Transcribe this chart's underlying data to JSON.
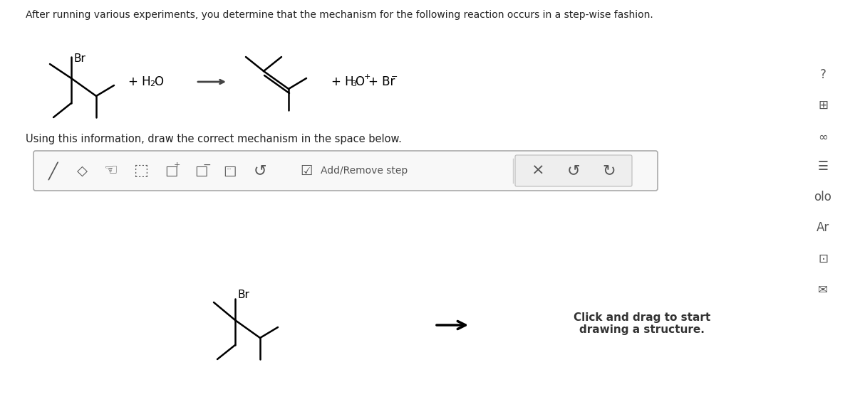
{
  "bg_color": "#ffffff",
  "title_text": "After running various experiments, you determine that the mechanism for the following reaction occurs in a step-wise fashion.",
  "subtitle_text": "Using this information, draw the correct mechanism in the space below.",
  "reaction_box_text": "Add/Remove step",
  "click_drag_text": "Click and drag to start\ndrawing a structure.",
  "toolbar_icons": true,
  "right_sidebar_icons": true
}
